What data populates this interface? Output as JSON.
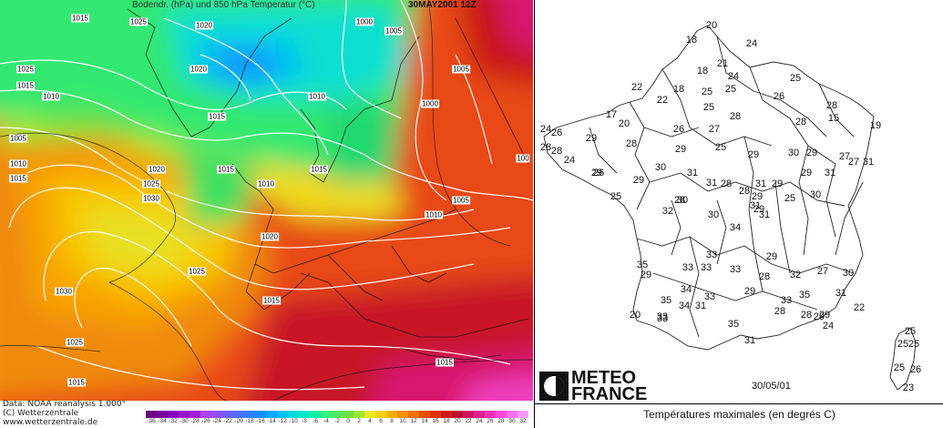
{
  "left_map": {
    "header_title": "Bodendr. (hPa) und 850 hPa Temperatur (°C)",
    "header_date": "30MAY2001 12Z",
    "credit_lines": [
      "Data: NOAA reanalysis 1.000°",
      "(C) Wetterzentrale",
      "www.wetterzentrale.de"
    ],
    "scale_labels": [
      "-36",
      "-34",
      "-32",
      "-30",
      "-28",
      "-26",
      "-24",
      "-22",
      "-20",
      "-18",
      "-16",
      "-14",
      "-12",
      "-10",
      "-8",
      "-6",
      "-4",
      "-2",
      "0",
      "2",
      "4",
      "6",
      "8",
      "10",
      "12",
      "14",
      "16",
      "18",
      "20",
      "22",
      "24",
      "26",
      "28",
      "30",
      "32"
    ],
    "scale_colors": [
      "#6a0080",
      "#7a00a0",
      "#8a00c0",
      "#9a10d0",
      "#a020e0",
      "#b040f0",
      "#9050ff",
      "#7060ff",
      "#5070ff",
      "#3080ff",
      "#1090ff",
      "#00a8ff",
      "#00c0f0",
      "#00d8e0",
      "#00e8c8",
      "#10f0a0",
      "#30f080",
      "#50e860",
      "#70e040",
      "#a0e830",
      "#e8e820",
      "#f8d010",
      "#f8b000",
      "#f89000",
      "#f07000",
      "#e85000",
      "#e03000",
      "#d01818",
      "#c00c30",
      "#d01060",
      "#e02090",
      "#f030b8",
      "#ff48d8",
      "#ff70f0",
      "#ff98ff"
    ],
    "isobar_labels": [
      {
        "t": "1015"
      },
      {
        "t": "1025"
      },
      {
        "t": "1020"
      },
      {
        "t": "1000"
      },
      {
        "t": "1005"
      },
      {
        "t": "1025"
      },
      {
        "t": "1015"
      },
      {
        "t": "1010"
      },
      {
        "t": "1020"
      },
      {
        "t": "1015"
      },
      {
        "t": "1005"
      },
      {
        "t": "1010"
      },
      {
        "t": "1000"
      },
      {
        "t": "1005"
      },
      {
        "t": "1015"
      },
      {
        "t": "1010"
      },
      {
        "t": "1015"
      },
      {
        "t": "1020"
      },
      {
        "t": "1025"
      },
      {
        "t": "1030"
      },
      {
        "t": "1015"
      },
      {
        "t": "1010"
      },
      {
        "t": "1020"
      },
      {
        "t": "1015"
      },
      {
        "t": "1005"
      },
      {
        "t": "1010"
      },
      {
        "t": "1025"
      },
      {
        "t": "1030"
      },
      {
        "t": "1015"
      },
      {
        "t": "1025"
      },
      {
        "t": "1015"
      },
      {
        "t": "100"
      }
    ]
  },
  "right_map": {
    "temps": [
      "20",
      "18",
      "24",
      "21",
      "18",
      "24",
      "25",
      "22",
      "18",
      "25",
      "25",
      "26",
      "22",
      "25",
      "28",
      "17",
      "20",
      "26",
      "27",
      "28",
      "28",
      "15",
      "19",
      "24",
      "26",
      "29",
      "28",
      "29",
      "25",
      "29",
      "30",
      "29",
      "27",
      "27",
      "24",
      "28",
      "29",
      "30",
      "31",
      "28",
      "28",
      "29",
      "29",
      "31",
      "31",
      "28",
      "25",
      "31",
      "26",
      "29",
      "32",
      "28",
      "25",
      "31",
      "29",
      "30",
      "30",
      "34",
      "30",
      "31",
      "31",
      "29",
      "33",
      "33",
      "33",
      "33",
      "27",
      "30",
      "29",
      "35",
      "29",
      "28",
      "32",
      "31",
      "28",
      "34",
      "33",
      "29",
      "33",
      "35",
      "31",
      "35",
      "33",
      "34",
      "28",
      "29",
      "22",
      "20",
      "33",
      "35",
      "29",
      "24",
      "31",
      "25",
      "25",
      "25",
      "26",
      "25",
      "23"
    ],
    "date": "30/05/01",
    "logo_line1": "METEO",
    "logo_line2": "FRANCE",
    "caption": "Températures maximales (en degrés C)"
  }
}
